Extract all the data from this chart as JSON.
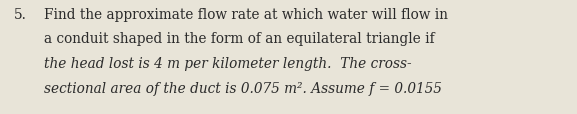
{
  "number": "5.",
  "line1": "Find the approximate flow rate at which water will flow in",
  "line2": "a conduit shaped in the form of an equilateral triangle if",
  "line3": "the head lost is 4 m per kilometer length.  The cross-",
  "line4": "sectional area of the duct is 0.075 m². Assume f = 0.0155",
  "bg_color": "#e8e4d8",
  "text_color": "#2a2a2a",
  "font_size": 9.8,
  "fig_width": 5.77,
  "fig_height": 1.15,
  "dpi": 100
}
